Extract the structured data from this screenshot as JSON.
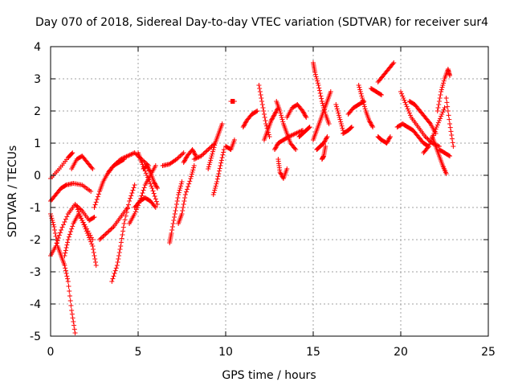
{
  "chart_data": {
    "type": "scatter",
    "title": "Day 070 of 2018, Sidereal Day-to-day VTEC variation (SDTVAR) for receiver sur4",
    "xlabel": "GPS time / hours",
    "ylabel": "SDTVAR / TECUs",
    "xlim": [
      0,
      25
    ],
    "ylim": [
      -5,
      4
    ],
    "xticks": [
      0,
      5,
      10,
      15,
      20,
      25
    ],
    "yticks": [
      -5,
      -4,
      -3,
      -2,
      -1,
      0,
      1,
      2,
      3,
      4
    ],
    "xtick_labels": [
      "0",
      "5",
      "10",
      "15",
      "20",
      "25"
    ],
    "ytick_labels": [
      "-5",
      "-4",
      "-3",
      "-2",
      "-1",
      "0",
      "1",
      "2",
      "3",
      "4"
    ],
    "grid": true,
    "marker": "+",
    "series": [
      {
        "name": "SDTVAR",
        "color": "#ff0000",
        "tracks": [
          {
            "x": [
              0.0,
              0.5,
              1.0,
              1.25
            ],
            "y": [
              -0.1,
              0.2,
              0.55,
              0.7
            ]
          },
          {
            "x": [
              0.0,
              0.2,
              0.4,
              0.6,
              0.8,
              1.0,
              1.2,
              1.4
            ],
            "y": [
              -1.2,
              -1.6,
              -2.2,
              -2.5,
              -2.8,
              -3.3,
              -4.2,
              -4.9
            ]
          },
          {
            "x": [
              0.0,
              0.3,
              0.6,
              0.9,
              1.3,
              1.8,
              2.3
            ],
            "y": [
              -0.8,
              -0.6,
              -0.4,
              -0.3,
              -0.25,
              -0.3,
              -0.5
            ]
          },
          {
            "x": [
              0.0,
              0.3,
              0.6,
              1.0,
              1.4,
              1.8,
              2.2,
              2.5
            ],
            "y": [
              -2.5,
              -2.2,
              -1.7,
              -1.2,
              -0.9,
              -1.1,
              -1.4,
              -1.3
            ]
          },
          {
            "x": [
              0.8,
              1.0,
              1.3,
              1.6,
              2.0,
              2.4
            ],
            "y": [
              -2.5,
              -2.0,
              -1.5,
              -1.2,
              -1.6,
              -2.0
            ]
          },
          {
            "x": [
              1.2,
              1.5,
              1.8,
              2.1,
              2.4
            ],
            "y": [
              0.2,
              0.5,
              0.6,
              0.4,
              0.2
            ]
          },
          {
            "x": [
              1.5,
              1.8,
              2.1,
              2.4,
              2.6
            ],
            "y": [
              -1.0,
              -1.4,
              -1.8,
              -2.2,
              -2.8
            ]
          },
          {
            "x": [
              2.5,
              2.8,
              3.0,
              3.3,
              3.6,
              3.9,
              4.2
            ],
            "y": [
              -1.0,
              -0.5,
              -0.2,
              0.1,
              0.3,
              0.4,
              0.5
            ]
          },
          {
            "x": [
              2.8,
              3.2,
              3.6,
              4.0,
              4.4
            ],
            "y": [
              -2.0,
              -1.8,
              -1.6,
              -1.3,
              -1.0
            ]
          },
          {
            "x": [
              3.5,
              3.8,
              4.0,
              4.2,
              4.5,
              4.8
            ],
            "y": [
              -3.3,
              -2.8,
              -2.2,
              -1.5,
              -0.8,
              -0.3
            ]
          },
          {
            "x": [
              3.2,
              3.6,
              4.0,
              4.4,
              4.8,
              5.2,
              5.6
            ],
            "y": [
              0.0,
              0.3,
              0.5,
              0.6,
              0.7,
              0.5,
              0.3
            ]
          },
          {
            "x": [
              4.5,
              4.8,
              5.1,
              5.4,
              5.7,
              6.0
            ],
            "y": [
              -1.5,
              -1.2,
              -0.8,
              -0.3,
              0.0,
              0.3
            ]
          },
          {
            "x": [
              5.0,
              5.2,
              5.5,
              5.8,
              6.1
            ],
            "y": [
              0.7,
              0.4,
              0.0,
              -0.4,
              -0.9
            ]
          },
          {
            "x": [
              4.8,
              5.1,
              5.4,
              5.7,
              6.0
            ],
            "y": [
              -1.0,
              -0.8,
              -0.7,
              -0.8,
              -1.0
            ]
          },
          {
            "x": [
              5.3,
              5.5,
              5.7,
              5.9,
              6.1
            ],
            "y": [
              0.2,
              0.3,
              0.1,
              -0.2,
              -0.4
            ]
          },
          {
            "x": [
              6.4,
              6.8,
              7.2,
              7.6
            ],
            "y": [
              0.3,
              0.35,
              0.5,
              0.7
            ]
          },
          {
            "x": [
              6.8,
              6.9,
              7.1,
              7.3,
              7.5
            ],
            "y": [
              -2.1,
              -1.8,
              -1.2,
              -0.6,
              -0.2
            ]
          },
          {
            "x": [
              7.3,
              7.5,
              7.7,
              8.0,
              8.2
            ],
            "y": [
              -1.5,
              -1.2,
              -0.6,
              -0.1,
              0.3
            ]
          },
          {
            "x": [
              7.6,
              7.8,
              8.1,
              8.3
            ],
            "y": [
              0.4,
              0.6,
              0.8,
              0.6
            ]
          },
          {
            "x": [
              8.2,
              8.6,
              9.0,
              9.4
            ],
            "y": [
              0.5,
              0.6,
              0.8,
              1.0
            ]
          },
          {
            "x": [
              9.0,
              9.2,
              9.4,
              9.6,
              9.8
            ],
            "y": [
              0.2,
              0.6,
              1.0,
              1.3,
              1.6
            ]
          },
          {
            "x": [
              9.3,
              9.5,
              9.7,
              9.9
            ],
            "y": [
              -0.6,
              -0.2,
              0.3,
              0.8
            ]
          },
          {
            "x": [
              10.3,
              10.5
            ],
            "y": [
              2.3,
              2.3
            ]
          },
          {
            "x": [
              10.0,
              10.3,
              10.5
            ],
            "y": [
              0.9,
              0.8,
              1.1
            ]
          },
          {
            "x": [
              11.0,
              11.2,
              11.5,
              11.8
            ],
            "y": [
              1.5,
              1.7,
              1.9,
              2.0
            ]
          },
          {
            "x": [
              11.9,
              12.1,
              12.3,
              12.5
            ],
            "y": [
              2.8,
              2.2,
              1.6,
              1.2
            ]
          },
          {
            "x": [
              12.2,
              12.4,
              12.6,
              12.8,
              13.0
            ],
            "y": [
              1.1,
              1.4,
              1.7,
              1.9,
              2.1
            ]
          },
          {
            "x": [
              12.9,
              13.1,
              13.3,
              13.5,
              13.7,
              14.0
            ],
            "y": [
              2.3,
              2.0,
              1.6,
              1.3,
              1.0,
              0.8
            ]
          },
          {
            "x": [
              12.8,
              13.0,
              13.3,
              13.6,
              14.0,
              14.4
            ],
            "y": [
              0.8,
              1.0,
              1.1,
              1.2,
              1.3,
              1.4
            ]
          },
          {
            "x": [
              13.0,
              13.1,
              13.3,
              13.5
            ],
            "y": [
              0.5,
              0.1,
              -0.1,
              0.2
            ]
          },
          {
            "x": [
              13.5,
              13.8,
              14.1,
              14.4,
              14.6
            ],
            "y": [
              1.8,
              2.1,
              2.2,
              2.0,
              1.8
            ]
          },
          {
            "x": [
              14.2,
              14.4,
              14.6,
              14.8
            ],
            "y": [
              1.2,
              1.3,
              1.4,
              1.5
            ]
          },
          {
            "x": [
              15.0,
              15.1,
              15.3,
              15.5,
              15.7,
              15.9
            ],
            "y": [
              3.5,
              3.2,
              2.8,
              2.3,
              1.9,
              1.6
            ]
          },
          {
            "x": [
              15.0,
              15.2,
              15.4,
              15.6,
              15.8,
              16.0
            ],
            "y": [
              1.1,
              1.4,
              1.7,
              2.0,
              2.3,
              2.6
            ]
          },
          {
            "x": [
              15.2,
              15.4,
              15.6,
              15.8
            ],
            "y": [
              0.8,
              0.9,
              1.0,
              1.2
            ]
          },
          {
            "x": [
              15.5,
              15.6,
              15.7
            ],
            "y": [
              0.5,
              0.6,
              0.9
            ]
          },
          {
            "x": [
              16.3,
              16.5,
              16.7
            ],
            "y": [
              2.2,
              1.8,
              1.4
            ]
          },
          {
            "x": [
              16.7,
              17.0,
              17.2
            ],
            "y": [
              1.3,
              1.4,
              1.5
            ]
          },
          {
            "x": [
              17.0,
              17.3,
              17.6,
              17.9
            ],
            "y": [
              1.9,
              2.1,
              2.2,
              2.3
            ]
          },
          {
            "x": [
              17.6,
              17.8,
              18.0,
              18.2,
              18.4
            ],
            "y": [
              2.8,
              2.4,
              2.0,
              1.7,
              1.5
            ]
          },
          {
            "x": [
              18.3,
              18.6,
              18.9
            ],
            "y": [
              2.7,
              2.6,
              2.5
            ]
          },
          {
            "x": [
              18.7,
              18.9,
              19.2,
              19.4
            ],
            "y": [
              1.2,
              1.1,
              1.0,
              1.2
            ]
          },
          {
            "x": [
              18.7,
              19.0,
              19.3,
              19.6
            ],
            "y": [
              2.9,
              3.1,
              3.3,
              3.5
            ]
          },
          {
            "x": [
              19.8,
              20.1,
              20.4,
              20.7,
              21.0,
              21.3,
              21.6
            ],
            "y": [
              1.5,
              1.6,
              1.5,
              1.4,
              1.2,
              1.0,
              0.9
            ]
          },
          {
            "x": [
              20.0,
              20.3,
              20.6,
              21.0,
              21.4,
              21.8,
              22.2
            ],
            "y": [
              2.6,
              2.2,
              1.8,
              1.5,
              1.2,
              1.0,
              0.9
            ]
          },
          {
            "x": [
              20.5,
              20.8,
              21.1,
              21.4,
              21.7,
              22.0
            ],
            "y": [
              2.3,
              2.2,
              2.0,
              1.8,
              1.6,
              1.3
            ]
          },
          {
            "x": [
              21.3,
              21.6,
              21.9,
              22.2,
              22.5
            ],
            "y": [
              0.7,
              0.9,
              1.3,
              1.7,
              2.1
            ]
          },
          {
            "x": [
              21.8,
              22.0,
              22.2,
              22.4,
              22.6
            ],
            "y": [
              1.2,
              0.9,
              0.6,
              0.3,
              0.05
            ]
          },
          {
            "x": [
              22.1,
              22.3,
              22.5,
              22.7,
              22.8
            ],
            "y": [
              2.0,
              2.6,
              3.0,
              3.3,
              3.1
            ]
          },
          {
            "x": [
              22.6,
              22.8,
              23.0
            ],
            "y": [
              2.4,
              1.6,
              0.9
            ]
          },
          {
            "x": [
              22.2,
              22.5,
              22.8
            ],
            "y": [
              0.8,
              0.7,
              0.6
            ]
          }
        ]
      }
    ]
  }
}
